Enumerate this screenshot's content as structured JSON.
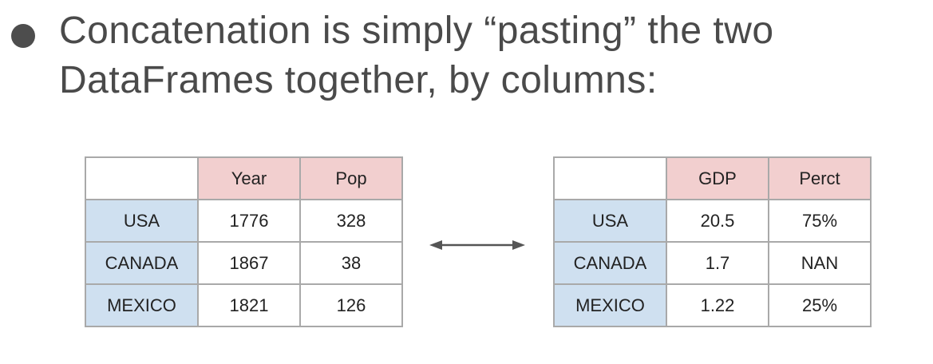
{
  "bullet": {
    "text_line1": "Concatenation is simply “pasting” the two",
    "text_line2": "DataFrames together, by columns:"
  },
  "left_table": {
    "headers": [
      "",
      "Year",
      "Pop"
    ],
    "rows": [
      {
        "label": "USA",
        "values": [
          "1776",
          "328"
        ]
      },
      {
        "label": "CANADA",
        "values": [
          "1867",
          "38"
        ]
      },
      {
        "label": "MEXICO",
        "values": [
          "1821",
          "126"
        ]
      }
    ]
  },
  "right_table": {
    "headers": [
      "",
      "GDP",
      "Perct"
    ],
    "rows": [
      {
        "label": "USA",
        "values": [
          "20.5",
          "75%"
        ]
      },
      {
        "label": "CANADA",
        "values": [
          "1.7",
          "NAN"
        ]
      },
      {
        "label": "MEXICO",
        "values": [
          "1.22",
          "25%"
        ]
      }
    ]
  },
  "colors": {
    "header_bg": "#f2cfcf",
    "index_bg": "#cfe0f0",
    "text": "#4a4a4a",
    "arrow": "#555555"
  },
  "icons": {
    "bullet": "bullet-dot-icon",
    "arrow": "double-arrow-icon"
  }
}
